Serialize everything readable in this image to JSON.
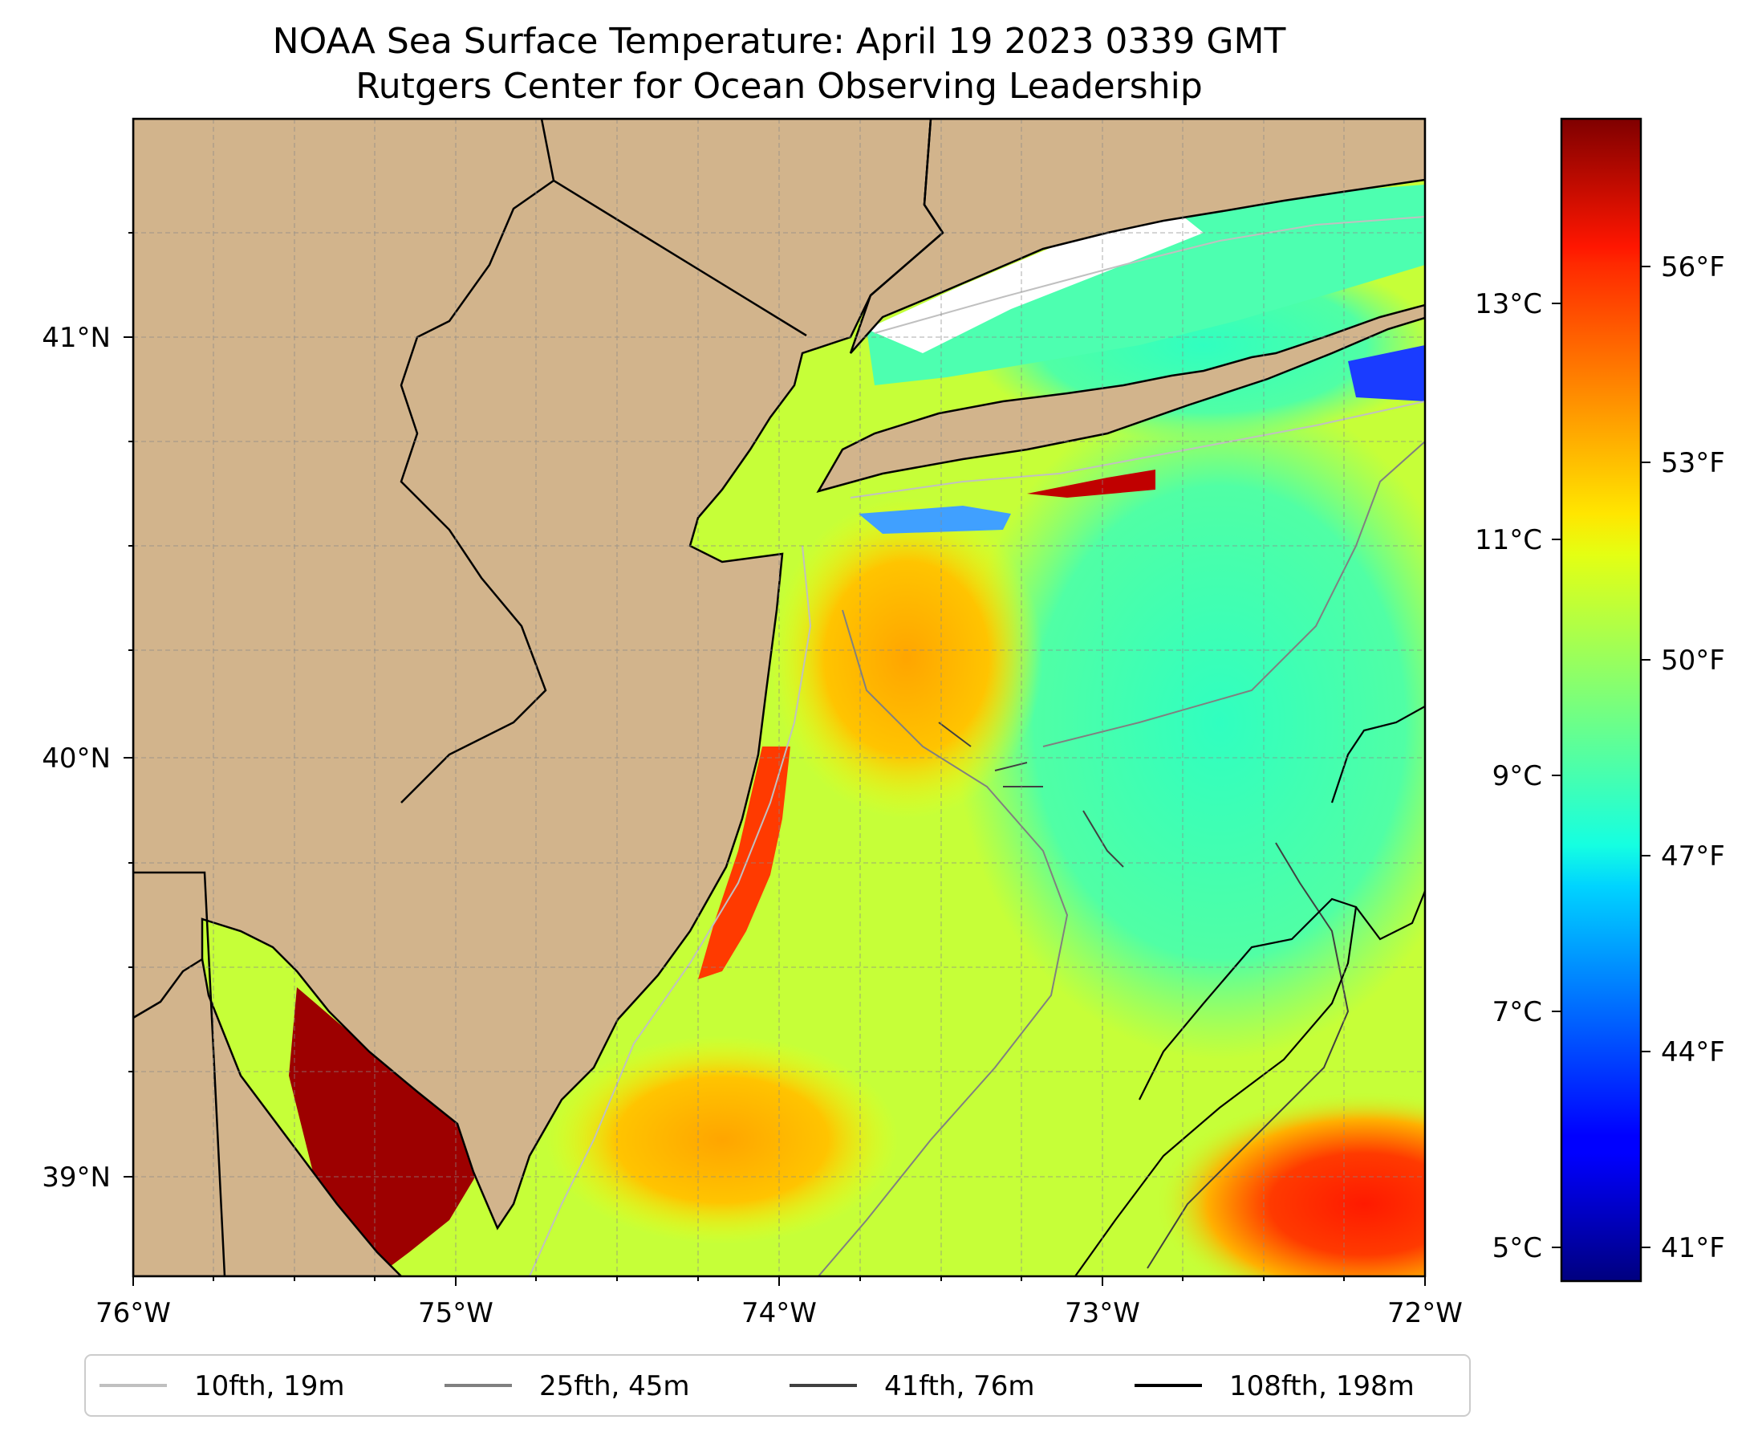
{
  "title_line1": "NOAA Sea Surface Temperature: April 19 2023 0339 GMT",
  "title_line2": "Rutgers Center for Ocean Observing Leadership",
  "map": {
    "lon_ticks": [
      "76°W",
      "75°W",
      "74°W",
      "73°W",
      "72°W"
    ],
    "lat_ticks": [
      "41°N",
      "40°N",
      "39°N"
    ],
    "land_color": "#d2b48c",
    "grid": true
  },
  "colorbar": {
    "colormap": "jet",
    "celsius_ticks": [
      "13°C",
      "11°C",
      "9°C",
      "7°C",
      "5°C"
    ],
    "fahrenheit_ticks": [
      "56°F",
      "53°F",
      "50°F",
      "47°F",
      "44°F",
      "41°F"
    ]
  },
  "legend": {
    "items": [
      {
        "label": "10fth, 19m",
        "color": "#c0c0c0"
      },
      {
        "label": "25fth, 45m",
        "color": "#808080"
      },
      {
        "label": "41fth, 76m",
        "color": "#404040"
      },
      {
        "label": "108fth, 198m",
        "color": "#000000"
      }
    ]
  }
}
